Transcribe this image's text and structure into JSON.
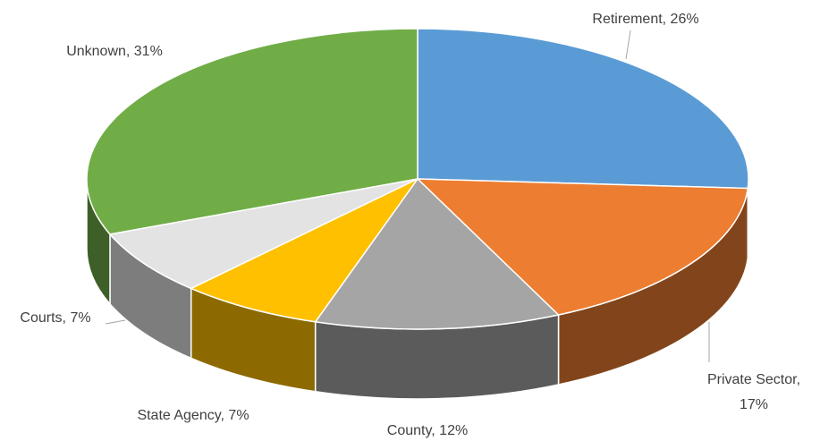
{
  "chart_data": {
    "type": "pie3d",
    "labels": [
      "Retirement, 26%",
      "Private Sector, 17%",
      "County, 12%",
      "State Agency, 7%",
      "Courts, 7%",
      "Unknown, 31%"
    ],
    "values": [
      26,
      17,
      12,
      7,
      7,
      31
    ],
    "colors": [
      "#5b9bd5",
      "#ed7d31",
      "#a5a5a5",
      "#ffc000",
      "#e3e3e3",
      "#70ad47"
    ]
  }
}
